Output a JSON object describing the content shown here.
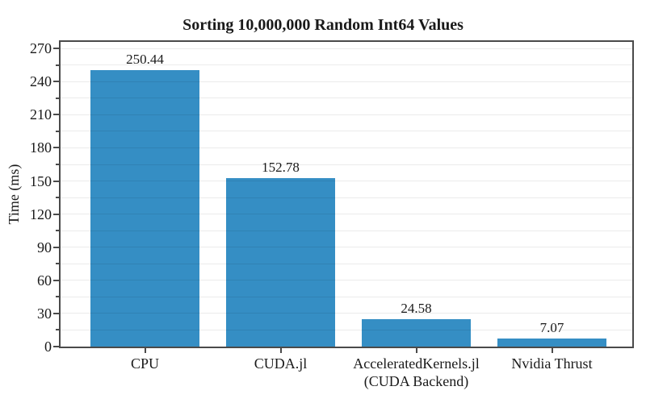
{
  "chart_data": {
    "type": "bar",
    "title": "Sorting 10,000,000 Random Int64 Values",
    "ylabel": "Time (ms)",
    "xlabel": "",
    "categories": [
      "CPU",
      "CUDA.jl",
      "AcceleratedKernels.jl\n(CUDA Backend)",
      "Nvidia Thrust"
    ],
    "values": [
      250.44,
      152.78,
      24.58,
      7.07
    ],
    "bar_labels": [
      "250.44",
      "152.78",
      "24.58",
      "7.07"
    ],
    "ylim": [
      0,
      276
    ],
    "yticks": [
      0,
      30,
      60,
      90,
      120,
      150,
      180,
      210,
      240,
      270
    ],
    "yminorticks": [
      15,
      45,
      75,
      105,
      135,
      165,
      195,
      225,
      255
    ],
    "grid": {
      "horizontal": true,
      "step": 15,
      "drawn_over_bars": true
    },
    "legend": null,
    "colors": {
      "bar": "#358EC4",
      "spine": "#4a4a4a",
      "gridline": "rgba(0,0,0,0.08)",
      "text": "#1a1a1a"
    }
  }
}
